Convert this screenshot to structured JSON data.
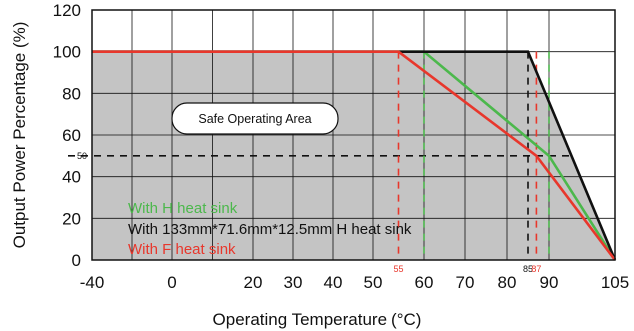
{
  "chart_data": {
    "type": "line",
    "title": "",
    "xlabel": "Operating Temperature",
    "xlabel_unit": "(°C)",
    "ylabel": "Output Power Percentage (%)",
    "xlim": [
      -40,
      105
    ],
    "ylim": [
      0,
      120
    ],
    "x_ticks": [
      -40,
      0,
      20,
      30,
      40,
      50,
      60,
      70,
      80,
      90,
      105
    ],
    "y_ticks": [
      0,
      20,
      40,
      60,
      80,
      100,
      120
    ],
    "grid": true,
    "series": [
      {
        "name": "With H heat sink",
        "color": "#4cb84c",
        "points": [
          [
            -40,
            100
          ],
          [
            60,
            100
          ],
          [
            90,
            50
          ],
          [
            105,
            0
          ]
        ]
      },
      {
        "name": "With 133mm*71.6mm*12.5mm H heat sink",
        "color": "#111111",
        "points": [
          [
            -40,
            100
          ],
          [
            85,
            100
          ],
          [
            105,
            0
          ]
        ]
      },
      {
        "name": "With F heat sink",
        "color": "#e8372c",
        "points": [
          [
            -40,
            100
          ],
          [
            55,
            100
          ],
          [
            87,
            50
          ],
          [
            105,
            0
          ]
        ]
      }
    ],
    "region_label": "Safe Operating Area",
    "reference_lines": [
      {
        "axis": "y",
        "value": 50,
        "label": "50",
        "color": "#111111"
      },
      {
        "axis": "x",
        "value": 55,
        "label": "55",
        "color": "#e8372c"
      },
      {
        "axis": "x",
        "value": 60,
        "label": "",
        "color": "#4cb84c"
      },
      {
        "axis": "x",
        "value": 85,
        "label": "85",
        "color": "#111111"
      },
      {
        "axis": "x",
        "value": 87,
        "label": "87",
        "color": "#e8372c"
      },
      {
        "axis": "x",
        "value": 90,
        "label": "",
        "color": "#4cb84c"
      }
    ]
  }
}
